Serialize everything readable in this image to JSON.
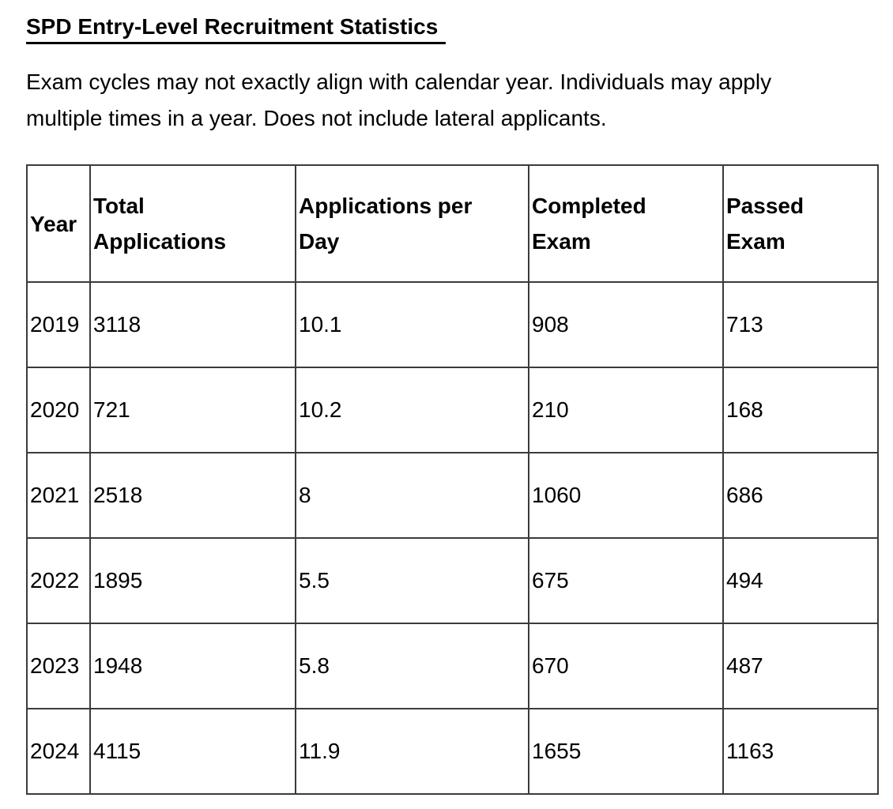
{
  "title": "SPD Entry-Level Recruitment Statistics",
  "intro": {
    "lines": [
      "Exam cycles may not exactly align with calendar year. Individuals may apply",
      "multiple times in a year. Does not include lateral applicants."
    ]
  },
  "table": {
    "headers": [
      "Year",
      "Total Applications",
      "Applications per Day",
      "Completed Exam",
      "Passed Exam"
    ],
    "rows": [
      [
        "2019",
        "3118",
        "10.1",
        "908",
        "713"
      ],
      [
        "2020",
        "721",
        "10.2",
        "210",
        "168"
      ],
      [
        "2021",
        "2518",
        "8",
        "1060",
        "686"
      ],
      [
        "2022",
        "1895",
        "5.5",
        "675",
        "494"
      ],
      [
        "2023",
        "1948",
        "5.8",
        "670",
        "487"
      ],
      [
        "2024",
        "4115",
        "11.9",
        "1655",
        "1163"
      ]
    ]
  },
  "colors": {
    "text": "#000000",
    "background": "#ffffff",
    "table_border": "#3b3b3b",
    "title_underline": "#000000"
  }
}
